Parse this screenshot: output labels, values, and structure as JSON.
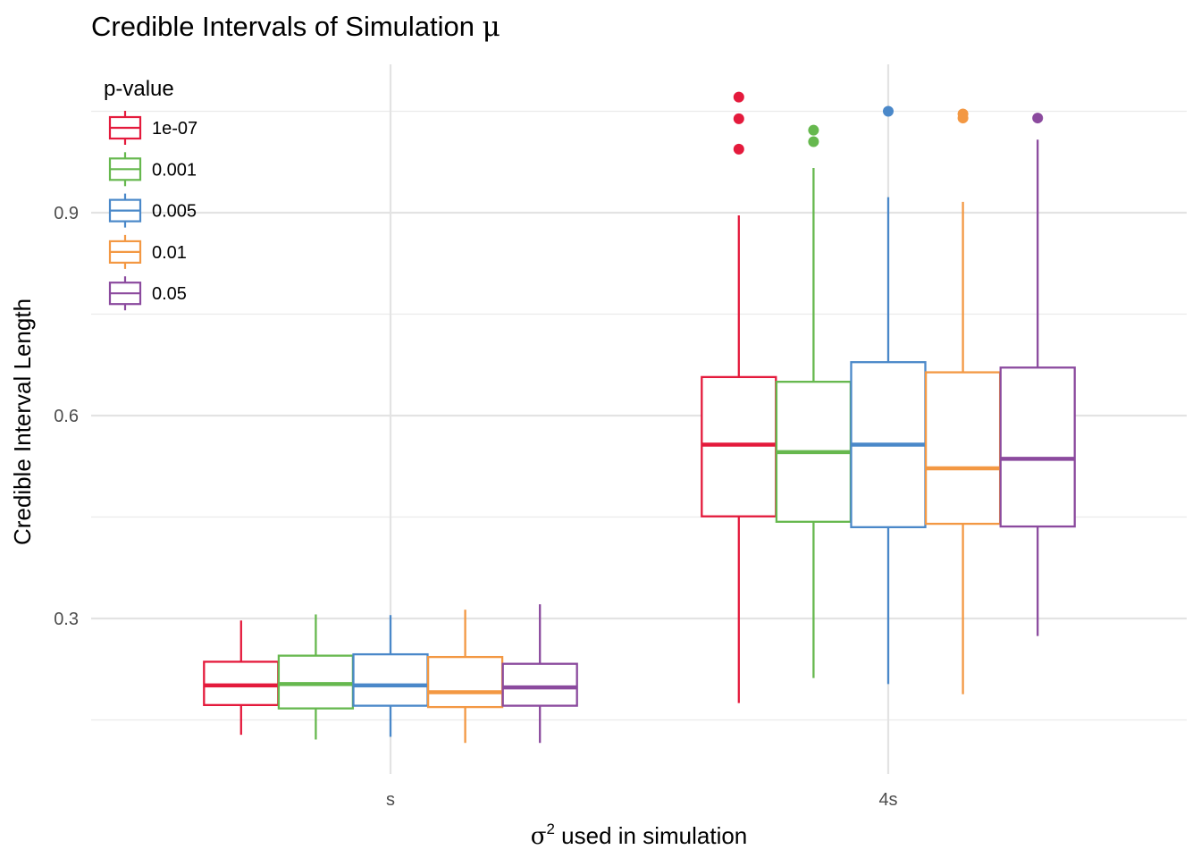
{
  "chart_data": {
    "type": "boxplot",
    "title": "Credible Intervals of Simulation",
    "title_symbol": "μ",
    "xlabel_symbol": "σ",
    "xlabel_superscript": "2",
    "xlabel": "used in simulation",
    "ylabel": "Credible Interval Length",
    "categories": [
      "s",
      "4s"
    ],
    "y_ticks": [
      "0.3",
      "0.6",
      "0.9"
    ],
    "y_tick_values": [
      0.3,
      0.6,
      0.9
    ],
    "ylim": [
      0.075,
      1.11
    ],
    "grid": true,
    "legend": {
      "title": "p-value",
      "position": "top-left"
    },
    "series": [
      {
        "name": "1e-07",
        "color": "#e41a3c",
        "boxes": [
          {
            "whisker_low": 0.128,
            "q1": 0.172,
            "median": 0.201,
            "q3": 0.236,
            "whisker_high": 0.297,
            "outliers": []
          },
          {
            "whisker_low": 0.175,
            "q1": 0.451,
            "median": 0.557,
            "q3": 0.657,
            "whisker_high": 0.896,
            "outliers": [
              0.994,
              1.039,
              1.071
            ]
          }
        ]
      },
      {
        "name": "0.001",
        "color": "#66b84e",
        "boxes": [
          {
            "whisker_low": 0.121,
            "q1": 0.167,
            "median": 0.203,
            "q3": 0.245,
            "whisker_high": 0.306,
            "outliers": []
          },
          {
            "whisker_low": 0.212,
            "q1": 0.443,
            "median": 0.546,
            "q3": 0.65,
            "whisker_high": 0.966,
            "outliers": [
              1.005,
              1.022
            ]
          }
        ]
      },
      {
        "name": "0.005",
        "color": "#4a88c9",
        "boxes": [
          {
            "whisker_low": 0.125,
            "q1": 0.171,
            "median": 0.201,
            "q3": 0.247,
            "whisker_high": 0.305,
            "outliers": []
          },
          {
            "whisker_low": 0.203,
            "q1": 0.435,
            "median": 0.557,
            "q3": 0.679,
            "whisker_high": 0.923,
            "outliers": [
              1.05
            ]
          }
        ]
      },
      {
        "name": "0.01",
        "color": "#f39843",
        "boxes": [
          {
            "whisker_low": 0.116,
            "q1": 0.169,
            "median": 0.191,
            "q3": 0.243,
            "whisker_high": 0.313,
            "outliers": []
          },
          {
            "whisker_low": 0.188,
            "q1": 0.44,
            "median": 0.522,
            "q3": 0.664,
            "whisker_high": 0.916,
            "outliers": [
              1.04,
              1.046
            ]
          }
        ]
      },
      {
        "name": "0.05",
        "color": "#8b4a9e",
        "boxes": [
          {
            "whisker_low": 0.116,
            "q1": 0.171,
            "median": 0.198,
            "q3": 0.233,
            "whisker_high": 0.321,
            "outliers": []
          },
          {
            "whisker_low": 0.274,
            "q1": 0.436,
            "median": 0.536,
            "q3": 0.671,
            "whisker_high": 1.008,
            "outliers": [
              1.04
            ]
          }
        ]
      }
    ]
  }
}
